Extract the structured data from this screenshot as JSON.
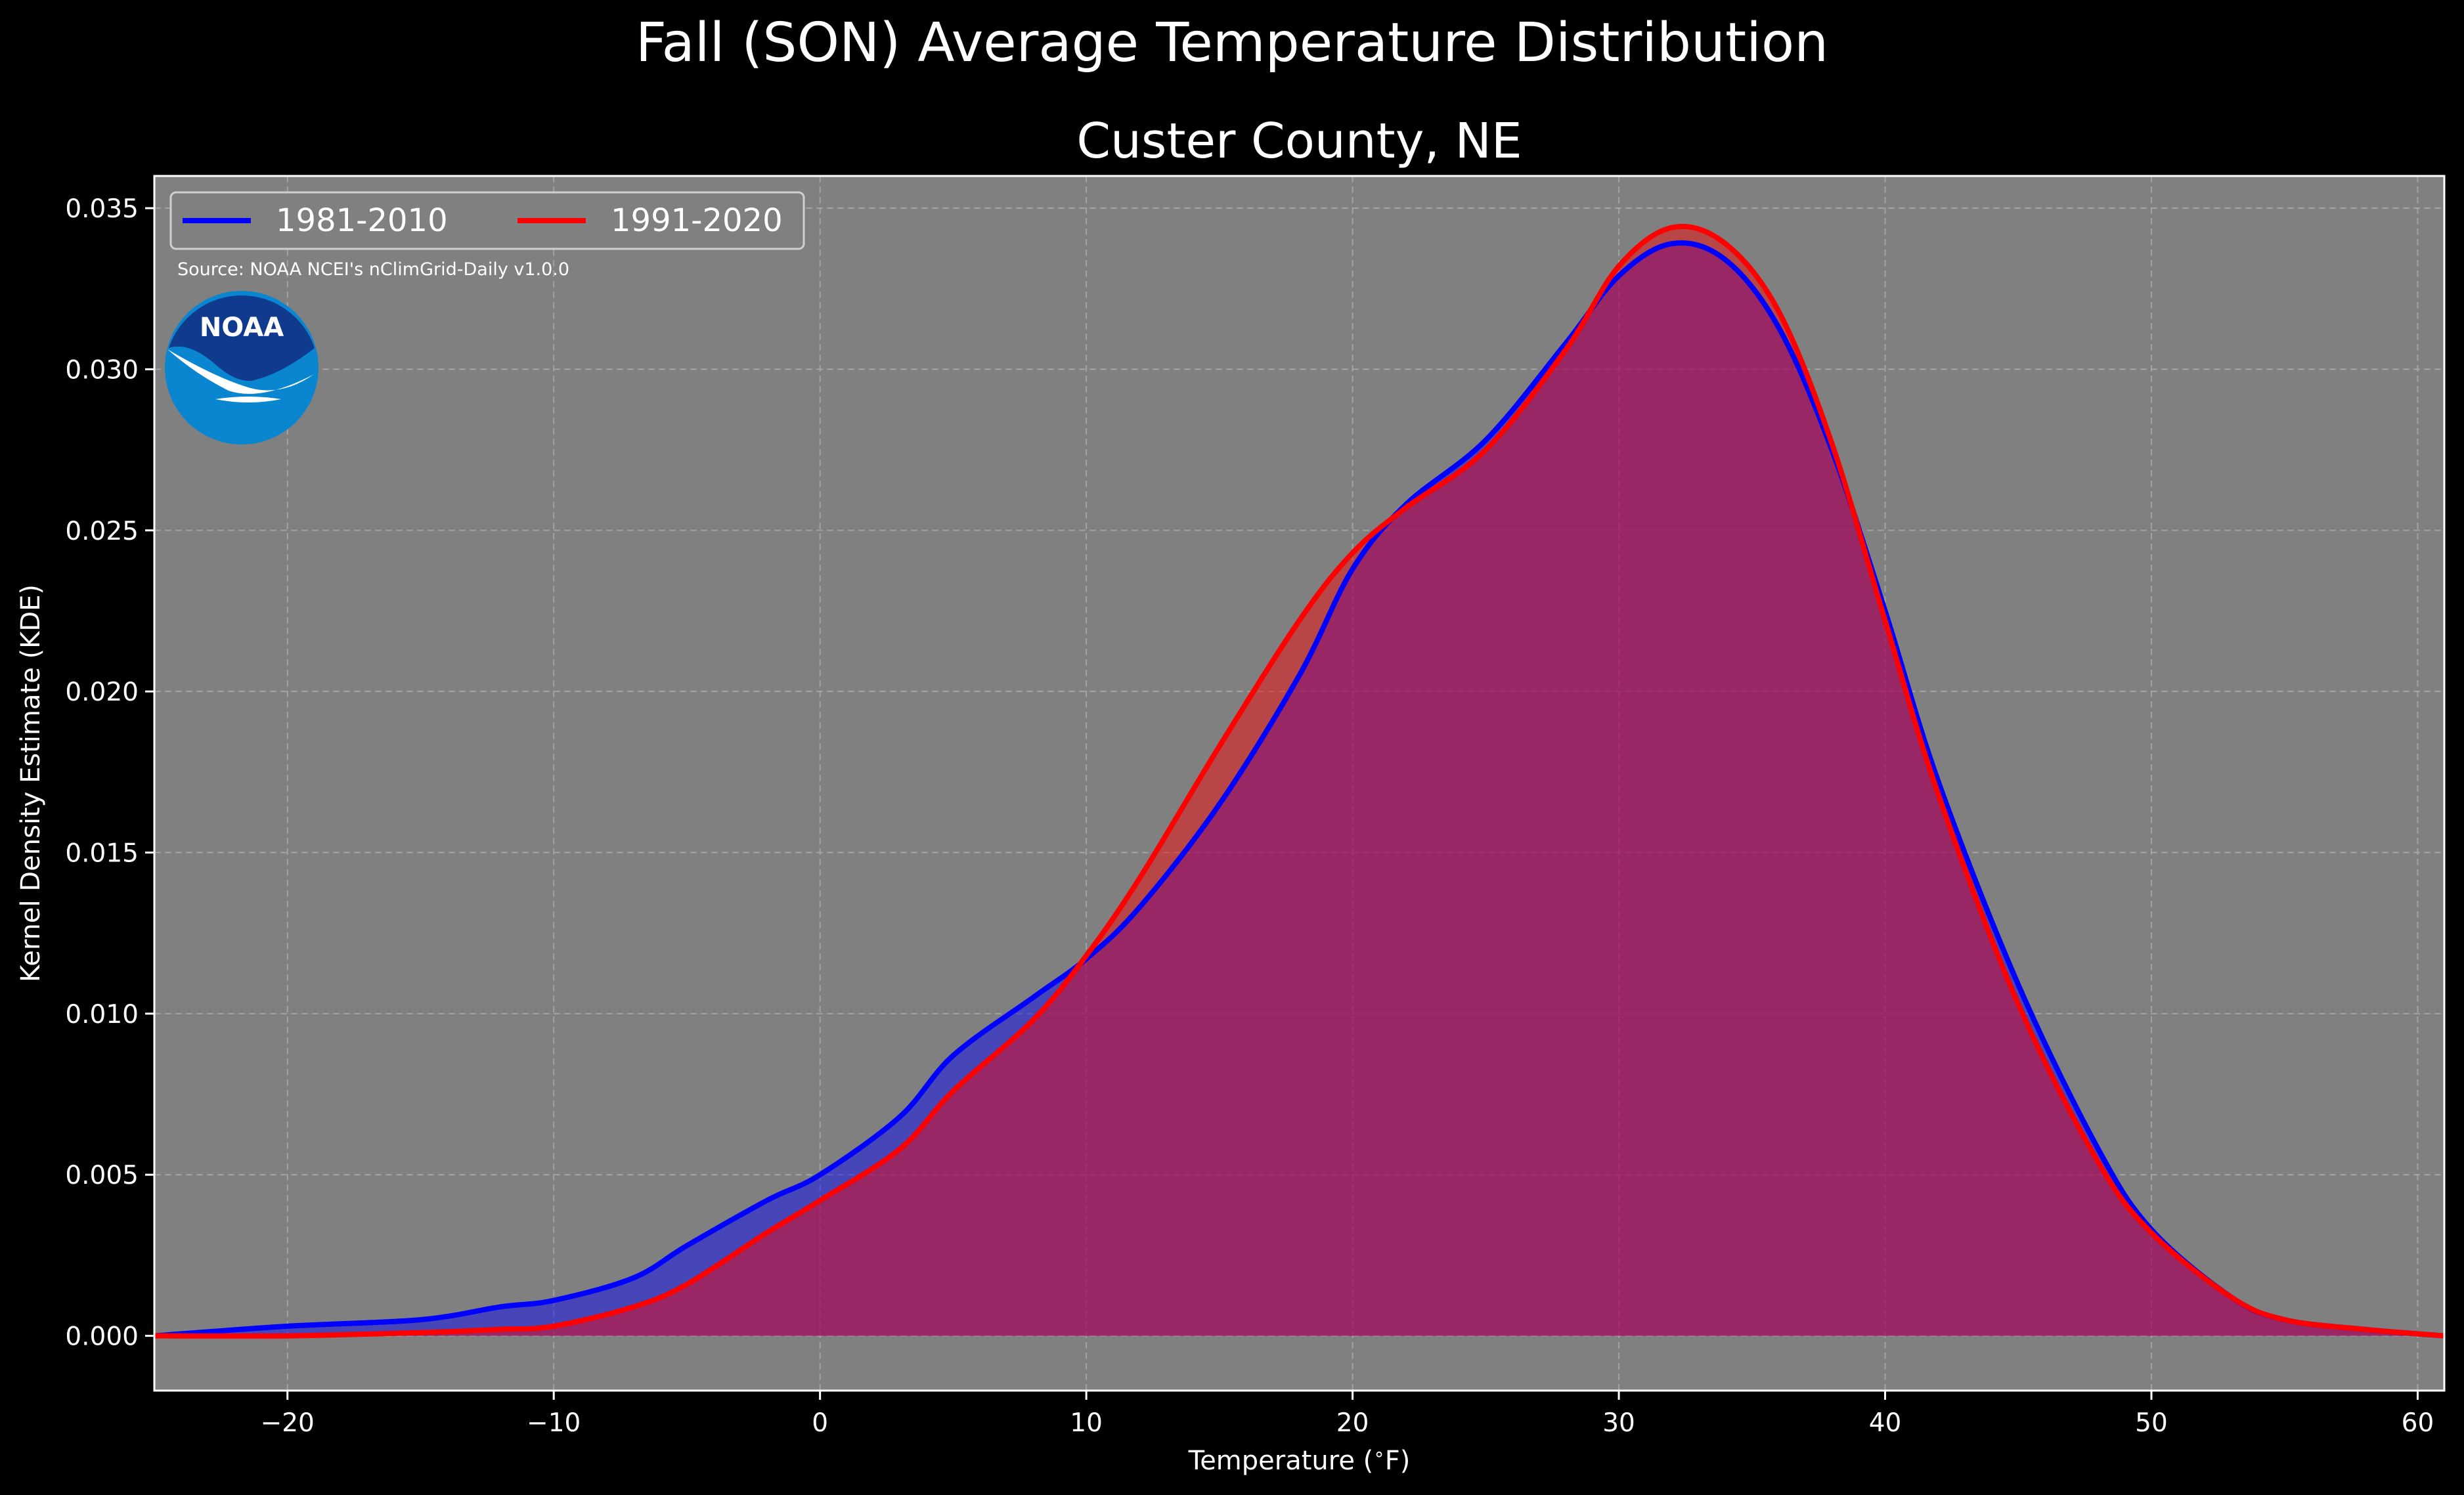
{
  "suptitle": "Fall (SON) Average Temperature Distribution",
  "colors": {
    "background": "#000000",
    "axes_bg": "#808080",
    "series_1981": "#0000ff",
    "series_1991": "#ff0000",
    "text": "#ffffff"
  },
  "logo": {
    "text": "NOAA",
    "icon": "noaa-logo"
  },
  "chart_data": {
    "type": "area",
    "title": "Custer County, NE",
    "xlabel": "Temperature ($^\\circ$F)",
    "ylabel": "Kernel Density Estimate (KDE)",
    "xlim": [
      -25,
      61
    ],
    "ylim": [
      -0.0017,
      0.036
    ],
    "xticks": [
      -20,
      -10,
      0,
      10,
      20,
      30,
      40,
      50,
      60
    ],
    "xtick_labels": [
      "−20",
      "−10",
      "0",
      "10",
      "20",
      "30",
      "40",
      "50",
      "60"
    ],
    "yticks": [
      0.0,
      0.005,
      0.01,
      0.015,
      0.02,
      0.025,
      0.03,
      0.035
    ],
    "ytick_labels": [
      "0.000",
      "0.005",
      "0.010",
      "0.015",
      "0.020",
      "0.025",
      "0.030",
      "0.035"
    ],
    "grid": true,
    "legend_position": "top-left",
    "annotation": "Source: NOAA NCEI's nClimGrid-Daily v1.0.0",
    "series": [
      {
        "name": "1981-2010",
        "color": "#0000ff",
        "x": [
          -25,
          -20,
          -15,
          -12,
          -10,
          -7,
          -5,
          -2,
          0,
          3,
          5,
          8,
          10,
          12,
          15,
          18,
          20,
          22,
          25,
          28,
          30,
          32,
          34,
          36,
          38,
          40,
          42,
          45,
          48,
          50,
          53,
          55,
          58,
          61
        ],
        "y": [
          0.0,
          0.0003,
          0.0005,
          0.0009,
          0.0011,
          0.0018,
          0.0028,
          0.0042,
          0.005,
          0.0068,
          0.0087,
          0.0105,
          0.0117,
          0.0133,
          0.0165,
          0.0205,
          0.0238,
          0.0258,
          0.0278,
          0.0308,
          0.0329,
          0.0339,
          0.0334,
          0.0313,
          0.0275,
          0.0225,
          0.0172,
          0.0109,
          0.0058,
          0.0033,
          0.0012,
          0.0005,
          0.0002,
          0.0
        ]
      },
      {
        "name": "1991-2020",
        "color": "#ff0000",
        "x": [
          -25,
          -20,
          -15,
          -12,
          -10,
          -7,
          -5,
          -2,
          0,
          3,
          5,
          8,
          10,
          12,
          15,
          18,
          20,
          22,
          25,
          28,
          30,
          32,
          34,
          36,
          38,
          40,
          42,
          45,
          48,
          50,
          53,
          55,
          58,
          61
        ],
        "y": [
          0.0,
          0.0,
          0.0001,
          0.0002,
          0.0003,
          0.0009,
          0.0016,
          0.0032,
          0.0042,
          0.0058,
          0.0076,
          0.0098,
          0.0118,
          0.0142,
          0.0183,
          0.0222,
          0.0243,
          0.0257,
          0.0275,
          0.0306,
          0.0332,
          0.0344,
          0.0339,
          0.0318,
          0.0277,
          0.0222,
          0.0168,
          0.0103,
          0.0054,
          0.0032,
          0.0012,
          0.0005,
          0.0002,
          0.0
        ]
      }
    ]
  }
}
